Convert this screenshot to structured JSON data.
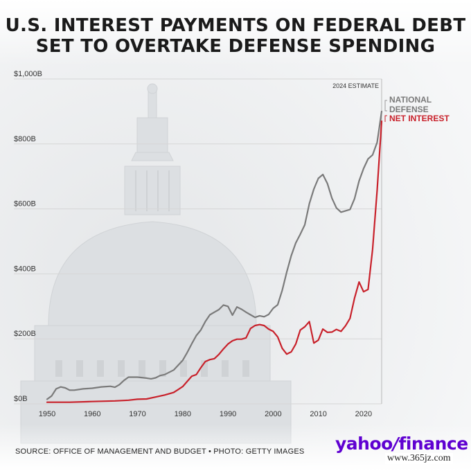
{
  "title": {
    "line1": "U.S. INTEREST PAYMENTS ON FEDERAL DEBT",
    "line2": "SET TO OVERTAKE DEFENSE SPENDING"
  },
  "footer": {
    "source": "SOURCE: OFFICE OF MANAGEMENT AND BUDGET • PHOTO: GETTY IMAGES",
    "logo_yahoo": "yahoo",
    "logo_slash": "/",
    "logo_finance": "finance",
    "watermark": "www.365jz.com"
  },
  "colors": {
    "defense": "#7a7a7a",
    "interest": "#c8202a",
    "grid": "#d6d6d6",
    "text": "#333333"
  },
  "chart_data": {
    "type": "line",
    "title": "U.S. INTEREST PAYMENTS ON FEDERAL DEBT SET TO OVERTAKE DEFENSE SPENDING",
    "xlabel": "",
    "ylabel": "",
    "xlim": [
      1950,
      2024
    ],
    "ylim": [
      0,
      1000
    ],
    "x_ticks": [
      1950,
      1960,
      1970,
      1980,
      1990,
      2000,
      2010,
      2020
    ],
    "x_tick_labels": [
      "1950",
      "1960",
      "1970",
      "1980",
      "1990",
      "2000",
      "2010",
      "2020"
    ],
    "y_ticks": [
      0,
      200,
      400,
      600,
      800,
      1000
    ],
    "y_tick_labels": [
      "$0B",
      "$200B",
      "$400B",
      "$600B",
      "$800B",
      "$1,000B"
    ],
    "grid": "horizontal",
    "annotation": "2024 ESTIMATE",
    "series": [
      {
        "name": "NATIONAL DEFENSE",
        "color": "#7a7a7a",
        "x": [
          1950,
          1951,
          1952,
          1953,
          1954,
          1955,
          1956,
          1958,
          1960,
          1962,
          1964,
          1965,
          1966,
          1967,
          1968,
          1970,
          1972,
          1973,
          1974,
          1975,
          1976,
          1978,
          1980,
          1981,
          1982,
          1983,
          1984,
          1985,
          1986,
          1987,
          1988,
          1989,
          1990,
          1991,
          1992,
          1993,
          1994,
          1995,
          1996,
          1997,
          1998,
          1999,
          2000,
          2001,
          2002,
          2003,
          2004,
          2005,
          2006,
          2007,
          2008,
          2009,
          2010,
          2011,
          2012,
          2013,
          2014,
          2015,
          2016,
          2017,
          2018,
          2019,
          2020,
          2021,
          2022,
          2023,
          2024
        ],
        "y": [
          14,
          24,
          46,
          52,
          49,
          42,
          42,
          46,
          48,
          52,
          54,
          51,
          59,
          72,
          82,
          82,
          79,
          77,
          80,
          87,
          90,
          104,
          134,
          158,
          185,
          210,
          227,
          253,
          274,
          282,
          290,
          304,
          300,
          273,
          298,
          291,
          282,
          274,
          266,
          271,
          268,
          275,
          294,
          305,
          349,
          405,
          456,
          495,
          522,
          551,
          616,
          661,
          694,
          706,
          678,
          633,
          603,
          590,
          594,
          598,
          631,
          686,
          724,
          754,
          766,
          805,
          900
        ]
      },
      {
        "name": "NET INTEREST",
        "color": "#c8202a",
        "x": [
          1950,
          1955,
          1960,
          1965,
          1968,
          1970,
          1972,
          1974,
          1976,
          1978,
          1980,
          1981,
          1982,
          1983,
          1984,
          1985,
          1986,
          1987,
          1988,
          1989,
          1990,
          1991,
          1992,
          1993,
          1994,
          1995,
          1996,
          1997,
          1998,
          1999,
          2000,
          2001,
          2002,
          2003,
          2004,
          2005,
          2006,
          2007,
          2008,
          2009,
          2010,
          2011,
          2012,
          2013,
          2014,
          2015,
          2016,
          2017,
          2018,
          2019,
          2020,
          2021,
          2022,
          2023,
          2024
        ],
        "y": [
          5,
          5,
          7,
          9,
          11,
          14,
          15,
          21,
          27,
          35,
          53,
          69,
          85,
          90,
          111,
          130,
          136,
          139,
          152,
          169,
          184,
          194,
          199,
          199,
          203,
          232,
          241,
          244,
          241,
          230,
          223,
          206,
          171,
          153,
          160,
          184,
          227,
          237,
          253,
          187,
          196,
          230,
          220,
          221,
          229,
          223,
          240,
          263,
          325,
          375,
          345,
          352,
          475,
          658,
          870
        ]
      }
    ]
  }
}
